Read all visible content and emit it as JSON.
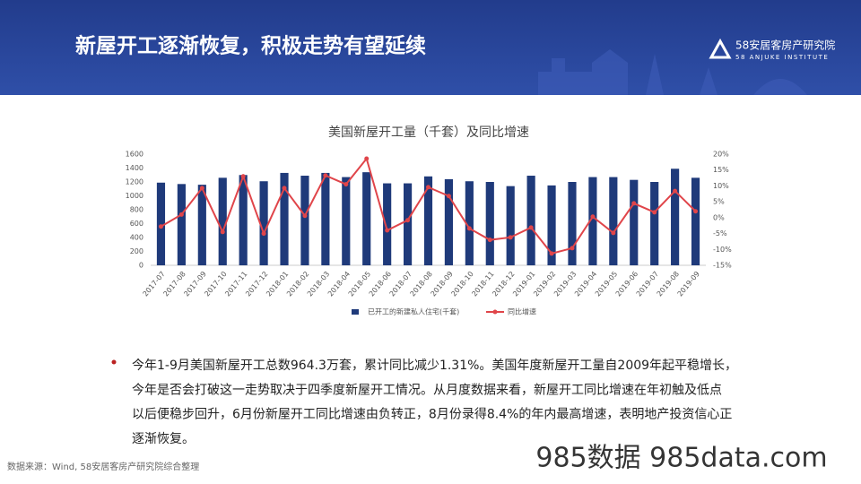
{
  "header": {
    "title": "新屋开工逐渐恢复，积极走势有望延续"
  },
  "logo": {
    "name": "58安居客房产研究院",
    "subtitle": "58 ANJUKE INSTITUTE"
  },
  "chart_data": {
    "type": "bar_line",
    "title": "美国新屋开工量（千套）及同比增速",
    "categories": [
      "2017-07",
      "2017-08",
      "2017-09",
      "2017-10",
      "2017-11",
      "2017-12",
      "2018-01",
      "2018-02",
      "2018-03",
      "2018-04",
      "2018-05",
      "2018-06",
      "2018-07",
      "2018-08",
      "2018-09",
      "2018-10",
      "2018-11",
      "2018-12",
      "2019-01",
      "2019-02",
      "2019-03",
      "2019-04",
      "2019-05",
      "2019-06",
      "2019-07",
      "2019-08",
      "2019-09"
    ],
    "series": [
      {
        "name": "已开工的新建私人住宅(千套)",
        "type": "bar",
        "color": "#1f3a7a",
        "values": [
          1190,
          1170,
          1160,
          1260,
          1300,
          1210,
          1330,
          1290,
          1330,
          1270,
          1340,
          1180,
          1180,
          1280,
          1240,
          1210,
          1200,
          1140,
          1290,
          1150,
          1200,
          1270,
          1270,
          1230,
          1200,
          1390,
          1260
        ]
      },
      {
        "name": "同比增速",
        "type": "line",
        "axis": "y2",
        "color": "#e0454a",
        "values": [
          -2.8,
          1,
          9.3,
          -4.5,
          13,
          -5,
          9.3,
          0.6,
          13.3,
          10.5,
          18.6,
          -4,
          -0.8,
          9.6,
          6.8,
          -3.4,
          -7,
          -6.2,
          -3.1,
          -11.3,
          -9.6,
          0.3,
          -4.8,
          4.5,
          1.7,
          8.4,
          2
        ]
      }
    ],
    "ylim": [
      0,
      1600
    ],
    "yticks": [
      0,
      200,
      400,
      600,
      800,
      1000,
      1200,
      1400,
      1600
    ],
    "y2lim": [
      -15,
      20
    ],
    "y2ticks": [
      {
        "value": -15,
        "label": "-15%"
      },
      {
        "value": -10,
        "label": "-10%"
      },
      {
        "value": -5,
        "label": "-5%"
      },
      {
        "value": 0,
        "label": "0%"
      },
      {
        "value": 5,
        "label": "5%"
      },
      {
        "value": 10,
        "label": "10%"
      },
      {
        "value": 15,
        "label": "15%"
      },
      {
        "value": 20,
        "label": "20%"
      }
    ],
    "legend": "bottom"
  },
  "body": {
    "lines": [
      "今年1-9月美国新屋开工总数964.3万套，累计同比减少1.31%。美国年度新屋开工量自2009年起平稳增长，",
      "今年是否会打破这一走势取决于四季度新屋开工情况。从月度数据来看，新屋开工同比增速在年初触及低点",
      "以后便稳步回升，6月份新屋开工同比增速由负转正，8月份录得8.4%的年内最高增速，表明地产投资信心正",
      "逐渐恢复。"
    ]
  },
  "footer": {
    "source": "数据来源：Wind, 58安居客房产研究院综合整理"
  },
  "watermark": "985数据 985data.com"
}
